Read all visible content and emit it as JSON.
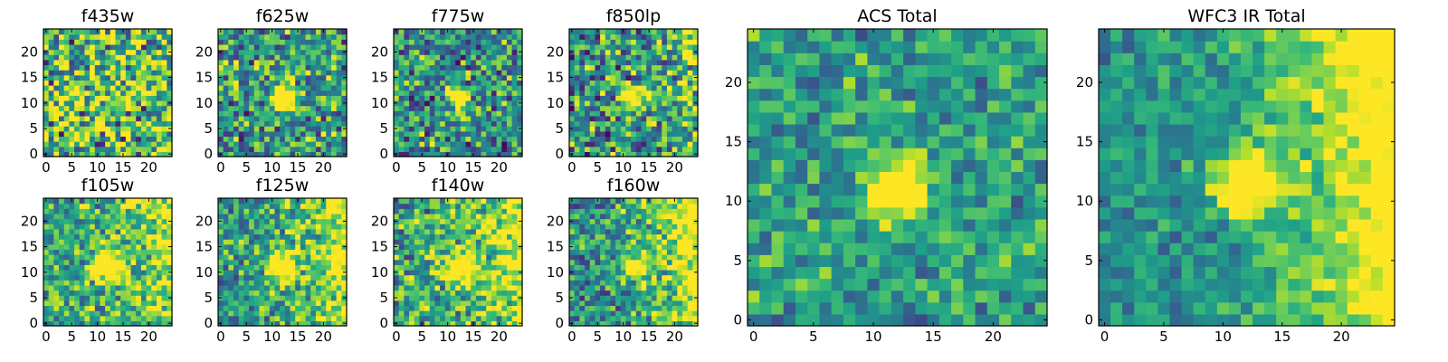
{
  "figure": {
    "colormap": "viridis",
    "pixel_grid": "25x25",
    "colors": {
      "low": "#440154",
      "mid": "#21908c",
      "high": "#fde725",
      "frame": "#000000",
      "background": "#ffffff"
    }
  },
  "chart_data": [
    {
      "type": "heatmap",
      "title": "f435w",
      "xlim": [
        0,
        25
      ],
      "ylim": [
        0,
        25
      ],
      "xticks": [
        "0",
        "5",
        "10",
        "15",
        "20"
      ],
      "yticks": [
        "0",
        "5",
        "10",
        "15",
        "20"
      ],
      "source": null,
      "noise": 0.9,
      "gradient": 0.0,
      "seed": 11,
      "bias": 0.2
    },
    {
      "type": "heatmap",
      "title": "f625w",
      "xlim": [
        0,
        25
      ],
      "ylim": [
        0,
        25
      ],
      "xticks": [
        "0",
        "5",
        "10",
        "15",
        "20"
      ],
      "yticks": [
        "0",
        "5",
        "10",
        "15",
        "20"
      ],
      "source": {
        "x": 12.5,
        "y": 11.5,
        "peak": 1.0,
        "sigma": 1.5
      },
      "noise": 0.7,
      "gradient": 0.0,
      "seed": 23,
      "bias": 0.05
    },
    {
      "type": "heatmap",
      "title": "f775w",
      "xlim": [
        0,
        25
      ],
      "ylim": [
        0,
        25
      ],
      "xticks": [
        "0",
        "5",
        "10",
        "15",
        "20"
      ],
      "yticks": [
        "0",
        "5",
        "10",
        "15",
        "20"
      ],
      "source": {
        "x": 12.5,
        "y": 11.5,
        "peak": 1.0,
        "sigma": 1.5
      },
      "noise": 0.7,
      "gradient": 0.0,
      "seed": 37,
      "bias": 0.0
    },
    {
      "type": "heatmap",
      "title": "f850lp",
      "xlim": [
        0,
        25
      ],
      "ylim": [
        0,
        25
      ],
      "xticks": [
        "0",
        "5",
        "10",
        "15",
        "20"
      ],
      "yticks": [
        "0",
        "5",
        "10",
        "15",
        "20"
      ],
      "source": {
        "x": 12.5,
        "y": 11.5,
        "peak": 0.9,
        "sigma": 1.4
      },
      "noise": 0.75,
      "gradient": 0.25,
      "seed": 41,
      "bias": 0.0
    },
    {
      "type": "heatmap",
      "title": "f105w",
      "xlim": [
        0,
        25
      ],
      "ylim": [
        0,
        25
      ],
      "xticks": [
        "0",
        "5",
        "10",
        "15",
        "20"
      ],
      "yticks": [
        "0",
        "5",
        "10",
        "15",
        "20"
      ],
      "source": {
        "x": 12.5,
        "y": 11.5,
        "peak": 0.8,
        "sigma": 2.0
      },
      "noise": 0.6,
      "gradient": 0.35,
      "seed": 53,
      "bias": 0.1
    },
    {
      "type": "heatmap",
      "title": "f125w",
      "xlim": [
        0,
        25
      ],
      "ylim": [
        0,
        25
      ],
      "xticks": [
        "0",
        "5",
        "10",
        "15",
        "20"
      ],
      "yticks": [
        "0",
        "5",
        "10",
        "15",
        "20"
      ],
      "source": {
        "x": 12.5,
        "y": 11.5,
        "peak": 0.8,
        "sigma": 2.0
      },
      "noise": 0.55,
      "gradient": 0.45,
      "seed": 67,
      "bias": 0.05
    },
    {
      "type": "heatmap",
      "title": "f140w",
      "xlim": [
        0,
        25
      ],
      "ylim": [
        0,
        25
      ],
      "xticks": [
        "0",
        "5",
        "10",
        "15",
        "20"
      ],
      "yticks": [
        "0",
        "5",
        "10",
        "15",
        "20"
      ],
      "source": {
        "x": 12.5,
        "y": 11.5,
        "peak": 0.7,
        "sigma": 2.0
      },
      "noise": 0.65,
      "gradient": 0.4,
      "seed": 71,
      "bias": 0.1
    },
    {
      "type": "heatmap",
      "title": "f160w",
      "xlim": [
        0,
        25
      ],
      "ylim": [
        0,
        25
      ],
      "xticks": [
        "0",
        "5",
        "10",
        "15",
        "20"
      ],
      "yticks": [
        "0",
        "5",
        "10",
        "15",
        "20"
      ],
      "source": {
        "x": 12.5,
        "y": 11.5,
        "peak": 0.8,
        "sigma": 1.6
      },
      "noise": 0.6,
      "gradient": 0.6,
      "seed": 83,
      "bias": 0.0
    },
    {
      "type": "heatmap",
      "title": "ACS Total",
      "xlim": [
        0,
        25
      ],
      "ylim": [
        0,
        25
      ],
      "xticks": [
        "0",
        "5",
        "10",
        "15",
        "20"
      ],
      "yticks": [
        "0",
        "5",
        "10",
        "15",
        "20"
      ],
      "source": {
        "x": 12.5,
        "y": 11.5,
        "peak": 1.0,
        "sigma": 1.6
      },
      "noise": 0.45,
      "gradient": 0.0,
      "seed": 97,
      "bias": 0.05
    },
    {
      "type": "heatmap",
      "title": "WFC3 IR Total",
      "xlim": [
        0,
        25
      ],
      "ylim": [
        0,
        25
      ],
      "xticks": [
        "0",
        "5",
        "10",
        "15",
        "20"
      ],
      "yticks": [
        "0",
        "5",
        "10",
        "15",
        "20"
      ],
      "source": {
        "x": 12.5,
        "y": 12.0,
        "peak": 0.9,
        "sigma": 1.7
      },
      "noise": 0.35,
      "gradient": 0.7,
      "seed": 101,
      "bias": 0.0
    }
  ]
}
